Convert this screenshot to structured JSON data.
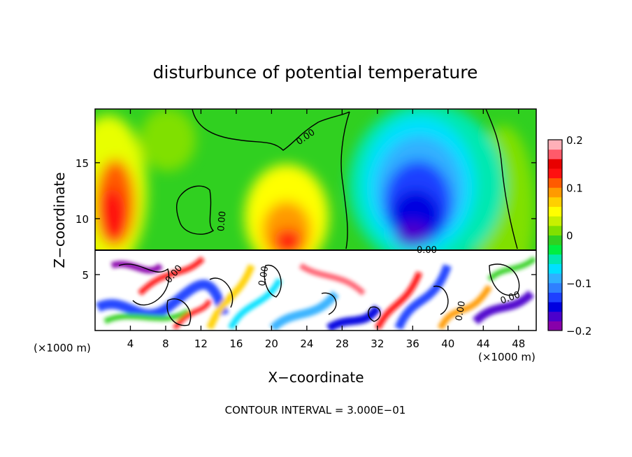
{
  "chart_data": {
    "type": "heatmap",
    "title": "disturbunce of potential temperature",
    "xlabel": "X−coordinate",
    "ylabel": "Z−coordinate",
    "x_unit_label": "(×1000 m)",
    "y_unit_label": "(×1000 m)",
    "xlim": [
      0,
      50
    ],
    "ylim": [
      0,
      19.8
    ],
    "x_ticks": [
      4,
      8,
      12,
      16,
      20,
      24,
      28,
      32,
      36,
      40,
      44,
      48
    ],
    "x_tick_labels": [
      "4",
      "8",
      "12",
      "16",
      "20",
      "24",
      "28",
      "32",
      "36",
      "40",
      "44",
      "48"
    ],
    "y_ticks": [
      5,
      10,
      15
    ],
    "y_tick_labels": [
      "5",
      "10",
      "15"
    ],
    "colorbar": {
      "range": [
        -0.2,
        0.2
      ],
      "ticks": [
        0.2,
        0.1,
        0,
        -0.1,
        -0.2
      ],
      "tick_labels": [
        "0.2",
        "0.1",
        "0",
        "−0.1",
        "−0.2"
      ],
      "colors": [
        "#8800aa",
        "#4b00cc",
        "#0000e0",
        "#1e40ff",
        "#2f80ff",
        "#30b0ff",
        "#00e0ff",
        "#00e8b0",
        "#00ee40",
        "#30d020",
        "#80e000",
        "#c8f000",
        "#ffff00",
        "#ffd000",
        "#ff9a00",
        "#ff5a00",
        "#ff1010",
        "#e80000",
        "#ff5a6a",
        "#ffb0b8"
      ]
    },
    "contour_labels": [
      "0.00",
      "0.00",
      "0.00",
      "0.00",
      "0.00",
      "0.00",
      "0.00"
    ],
    "footer": "CONTOUR INTERVAL = 3.000E−01"
  }
}
